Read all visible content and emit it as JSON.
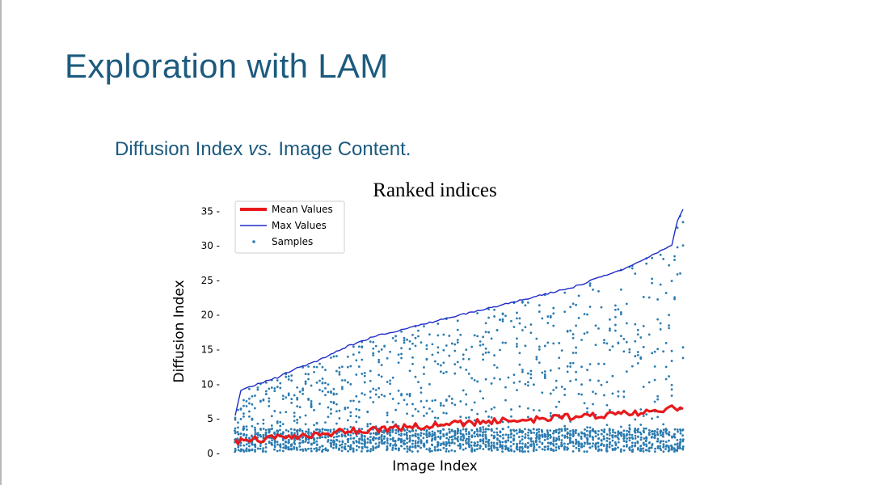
{
  "slide": {
    "title": "Exploration with LAM",
    "subtitle_pre": "Diffusion Index ",
    "subtitle_vs": "vs.",
    "subtitle_post": " Image Content."
  },
  "chart_data": {
    "type": "scatter",
    "title": "Ranked indices",
    "xlabel": "Image Index",
    "ylabel": "Diffusion Index",
    "ylim": [
      0,
      35.5
    ],
    "yticks": [
      0,
      5,
      10,
      15,
      20,
      25,
      30,
      35
    ],
    "ytick_labels": [
      "0 -",
      "5 -",
      "10 -",
      "15 -",
      "20 -",
      "25 -",
      "30 -",
      "35 -"
    ],
    "n_images": 160,
    "legend": {
      "placement": "top-left",
      "entries": [
        "Mean Values",
        "Max Values",
        "Samples"
      ]
    },
    "colors": {
      "mean": "#e8191c",
      "max": "#1f2bc8",
      "samples": "#2b7bb0",
      "title": "#1c5a7e"
    },
    "series": [
      {
        "name": "Max Values",
        "kind": "line",
        "x": [
          0,
          2,
          4,
          8,
          15,
          20,
          30,
          40,
          50,
          60,
          70,
          80,
          90,
          100,
          110,
          120,
          130,
          140,
          145,
          150,
          155,
          157,
          159
        ],
        "values": [
          5.5,
          9.0,
          9.5,
          10.0,
          11.0,
          12.0,
          13.5,
          15.5,
          17.0,
          18.0,
          19.0,
          20.0,
          21.0,
          22.0,
          23.0,
          24.0,
          25.5,
          27.0,
          28.0,
          29.0,
          30.0,
          33.5,
          35.2
        ]
      },
      {
        "name": "Mean Values",
        "kind": "line",
        "x": [
          0,
          20,
          40,
          60,
          80,
          100,
          120,
          140,
          150,
          155,
          159
        ],
        "values": [
          1.7,
          2.5,
          3.2,
          3.8,
          4.3,
          4.8,
          5.3,
          5.8,
          6.0,
          6.6,
          6.4
        ]
      },
      {
        "name": "Samples",
        "kind": "scatter",
        "dense_band_max": 3.6,
        "sparse_max": "Max Values"
      }
    ]
  }
}
